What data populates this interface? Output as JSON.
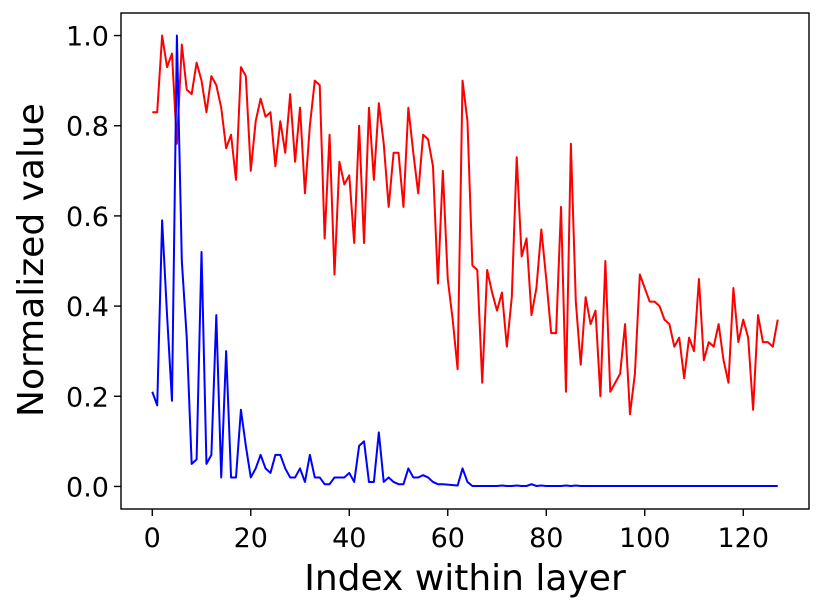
{
  "chart_data": {
    "type": "line",
    "title": "",
    "xlabel": "Index within layer",
    "ylabel": "Normalized value",
    "xlim": [
      -6.35,
      133.35
    ],
    "ylim": [
      -0.05,
      1.05
    ],
    "xticks": [
      0,
      20,
      40,
      60,
      80,
      100,
      120
    ],
    "xtick_labels": [
      "0",
      "20",
      "40",
      "60",
      "80",
      "100",
      "120"
    ],
    "yticks": [
      0.0,
      0.2,
      0.4,
      0.6,
      0.8,
      1.0
    ],
    "ytick_labels": [
      "0.0",
      "0.2",
      "0.4",
      "0.6",
      "0.8",
      "1.0"
    ],
    "grid": false,
    "legend": "none",
    "series": [
      {
        "color": "#ff0000",
        "x": [
          0,
          1,
          2,
          3,
          4,
          5,
          6,
          7,
          8,
          9,
          10,
          11,
          12,
          13,
          14,
          15,
          16,
          17,
          18,
          19,
          20,
          21,
          22,
          23,
          24,
          25,
          26,
          27,
          28,
          29,
          30,
          31,
          32,
          33,
          34,
          35,
          36,
          37,
          38,
          39,
          40,
          41,
          42,
          43,
          44,
          45,
          46,
          47,
          48,
          49,
          50,
          51,
          52,
          53,
          54,
          55,
          56,
          57,
          58,
          59,
          60,
          61,
          62,
          63,
          64,
          65,
          66,
          67,
          68,
          69,
          70,
          71,
          72,
          73,
          74,
          75,
          76,
          77,
          78,
          79,
          80,
          81,
          82,
          83,
          84,
          85,
          86,
          87,
          88,
          89,
          90,
          91,
          92,
          93,
          94,
          95,
          96,
          97,
          98,
          99,
          100,
          101,
          102,
          103,
          104,
          105,
          106,
          107,
          108,
          109,
          110,
          111,
          112,
          113,
          114,
          115,
          116,
          117,
          118,
          119,
          120,
          121,
          122,
          123,
          124,
          125,
          126,
          127
        ],
        "values": [
          0.83,
          0.83,
          1.0,
          0.93,
          0.96,
          0.76,
          0.98,
          0.88,
          0.87,
          0.94,
          0.9,
          0.83,
          0.91,
          0.89,
          0.84,
          0.75,
          0.78,
          0.68,
          0.93,
          0.91,
          0.7,
          0.81,
          0.86,
          0.82,
          0.83,
          0.71,
          0.81,
          0.74,
          0.87,
          0.72,
          0.84,
          0.65,
          0.8,
          0.9,
          0.89,
          0.55,
          0.78,
          0.47,
          0.72,
          0.67,
          0.69,
          0.54,
          0.8,
          0.54,
          0.84,
          0.68,
          0.85,
          0.76,
          0.62,
          0.74,
          0.74,
          0.62,
          0.84,
          0.74,
          0.65,
          0.78,
          0.77,
          0.71,
          0.45,
          0.7,
          0.46,
          0.37,
          0.26,
          0.9,
          0.81,
          0.49,
          0.48,
          0.23,
          0.48,
          0.43,
          0.39,
          0.43,
          0.31,
          0.42,
          0.73,
          0.51,
          0.55,
          0.38,
          0.44,
          0.57,
          0.46,
          0.34,
          0.34,
          0.62,
          0.21,
          0.76,
          0.41,
          0.27,
          0.42,
          0.36,
          0.39,
          0.2,
          0.5,
          0.21,
          0.23,
          0.25,
          0.36,
          0.16,
          0.25,
          0.47,
          0.44,
          0.41,
          0.41,
          0.4,
          0.37,
          0.36,
          0.31,
          0.33,
          0.24,
          0.33,
          0.3,
          0.46,
          0.28,
          0.32,
          0.31,
          0.36,
          0.28,
          0.23,
          0.44,
          0.32,
          0.37,
          0.33,
          0.17,
          0.38,
          0.32,
          0.32,
          0.31,
          0.37
        ]
      },
      {
        "color": "#0000ff",
        "x": [
          0,
          1,
          2,
          3,
          4,
          5,
          6,
          7,
          8,
          9,
          10,
          11,
          12,
          13,
          14,
          15,
          16,
          17,
          18,
          19,
          20,
          21,
          22,
          23,
          24,
          25,
          26,
          27,
          28,
          29,
          30,
          31,
          32,
          33,
          34,
          35,
          36,
          37,
          38,
          39,
          40,
          41,
          42,
          43,
          44,
          45,
          46,
          47,
          48,
          49,
          50,
          51,
          52,
          53,
          54,
          55,
          56,
          57,
          58,
          59,
          60,
          61,
          62,
          63,
          64,
          65,
          66,
          67,
          68,
          69,
          70,
          71,
          72,
          73,
          74,
          75,
          76,
          77,
          78,
          79,
          80,
          81,
          82,
          83,
          84,
          85,
          86,
          87,
          88,
          89,
          90,
          91,
          92,
          93,
          94,
          95,
          96,
          97,
          98,
          99,
          100,
          101,
          102,
          103,
          104,
          105,
          106,
          107,
          108,
          109,
          110,
          111,
          112,
          113,
          114,
          115,
          116,
          117,
          118,
          119,
          120,
          121,
          122,
          123,
          124,
          125,
          126,
          127
        ],
        "values": [
          0.21,
          0.18,
          0.59,
          0.38,
          0.19,
          1.0,
          0.5,
          0.33,
          0.05,
          0.06,
          0.52,
          0.05,
          0.07,
          0.38,
          0.02,
          0.3,
          0.02,
          0.02,
          0.17,
          0.09,
          0.02,
          0.04,
          0.07,
          0.04,
          0.03,
          0.07,
          0.07,
          0.04,
          0.02,
          0.02,
          0.04,
          0.01,
          0.07,
          0.02,
          0.02,
          0.005,
          0.005,
          0.02,
          0.02,
          0.02,
          0.03,
          0.01,
          0.09,
          0.1,
          0.01,
          0.01,
          0.12,
          0.01,
          0.02,
          0.01,
          0.005,
          0.005,
          0.04,
          0.02,
          0.02,
          0.025,
          0.02,
          0.01,
          0.005,
          0.005,
          0.004,
          0.003,
          0.002,
          0.04,
          0.01,
          0.001,
          0.001,
          0.001,
          0.001,
          0.001,
          0.001,
          0.002,
          0.001,
          0.001,
          0.002,
          0.001,
          0.001,
          0.005,
          0.001,
          0.002,
          0.001,
          0.001,
          0.001,
          0.001,
          0.002,
          0.001,
          0.002,
          0.001,
          0.001,
          0.001,
          0.001,
          0.001,
          0.001,
          0.001,
          0.001,
          0.001,
          0.001,
          0.001,
          0.001,
          0.001,
          0.001,
          0.001,
          0.001,
          0.001,
          0.001,
          0.001,
          0.001,
          0.001,
          0.001,
          0.001,
          0.001,
          0.001,
          0.001,
          0.001,
          0.001,
          0.001,
          0.001,
          0.001,
          0.001,
          0.001,
          0.001,
          0.001,
          0.001,
          0.001,
          0.001,
          0.001,
          0.001,
          0.001
        ]
      }
    ]
  }
}
